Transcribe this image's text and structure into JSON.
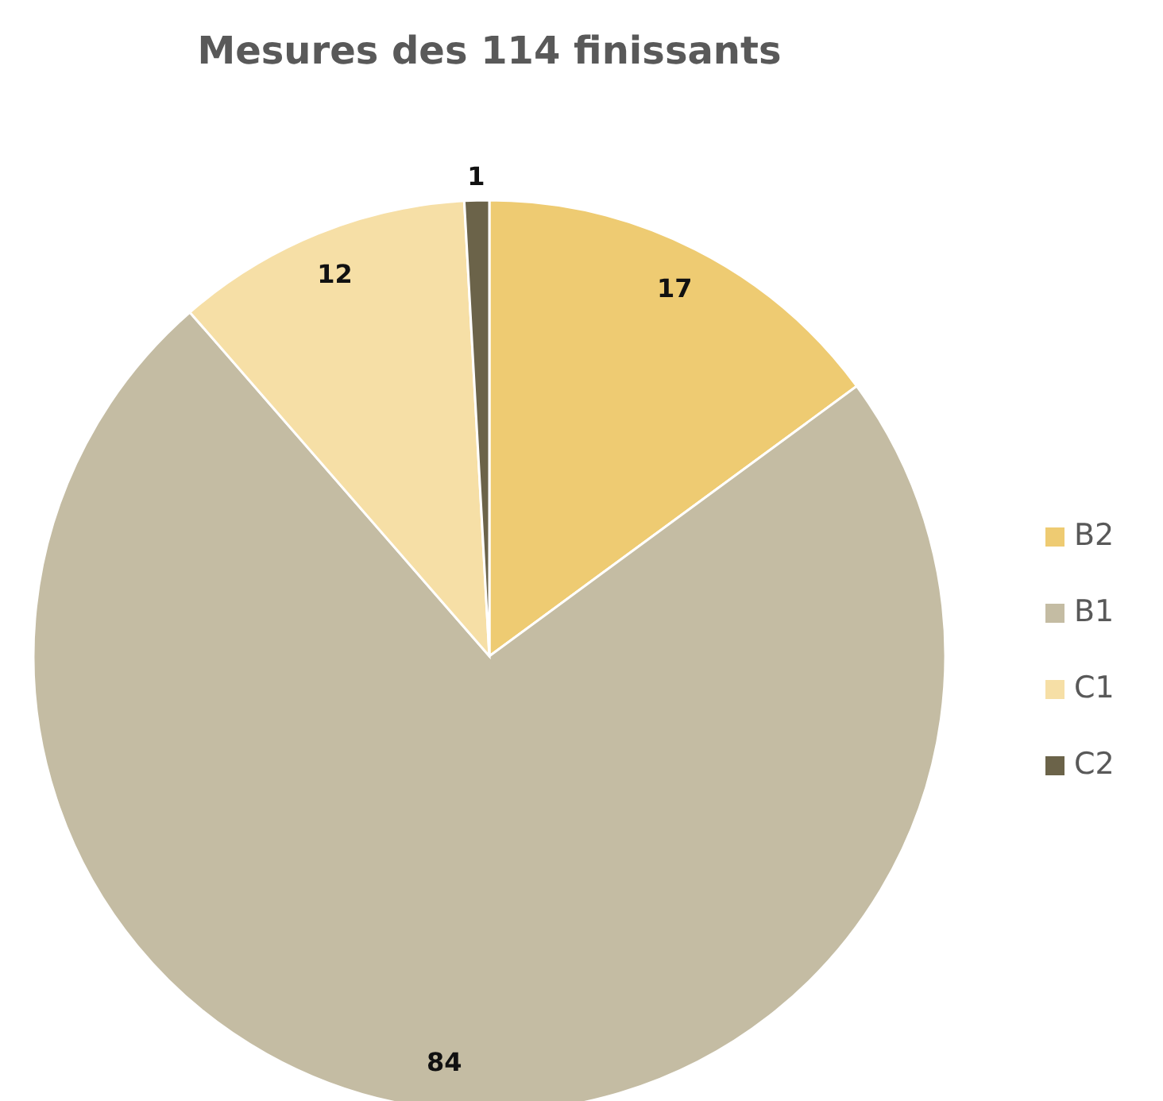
{
  "chart_data": {
    "type": "pie",
    "title": "Mesures des 114 finissants",
    "categories": [
      "B2",
      "B1",
      "C1",
      "C2"
    ],
    "values": [
      17,
      84,
      12,
      1
    ],
    "colors": [
      "#eecb72",
      "#c4bca3",
      "#f6dfa6",
      "#6b6349"
    ],
    "data_labels": true,
    "legend": "right"
  }
}
